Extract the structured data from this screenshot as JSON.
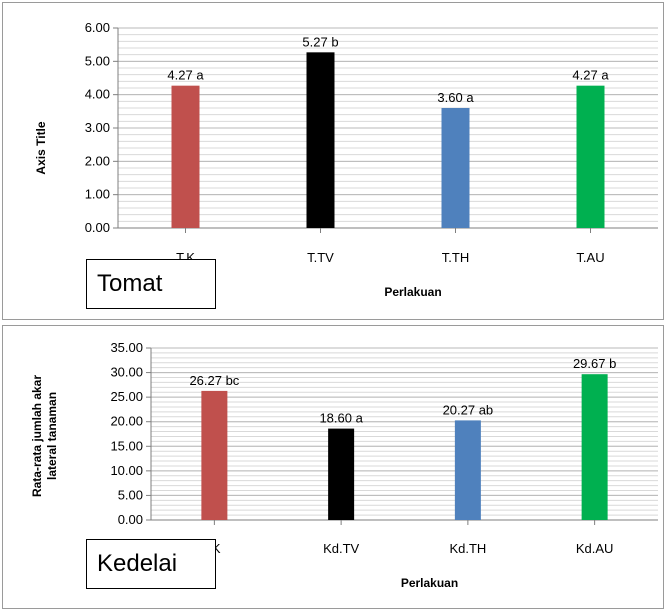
{
  "chart_data": [
    {
      "type": "bar",
      "categories": [
        "T.K",
        "T.TV",
        "T.TH",
        "T.AU"
      ],
      "values": [
        4.27,
        5.27,
        3.6,
        4.27
      ],
      "data_labels": [
        "4.27 a",
        "5.27 b",
        "3.60 a",
        "4.27 a"
      ],
      "colors": [
        "#c0504d",
        "#000000",
        "#4f81bd",
        "#00b050"
      ],
      "xlabel": "Perlakuan",
      "ylabel": "Axis Title",
      "ylim": [
        0,
        6
      ],
      "yticks": [
        "0.00",
        "1.00",
        "2.00",
        "3.00",
        "4.00",
        "5.00",
        "6.00"
      ],
      "grid": "horizontal",
      "overlay_label": "Tomat"
    },
    {
      "type": "bar",
      "categories": [
        ".K",
        "Kd.TV",
        "Kd.TH",
        "Kd.AU"
      ],
      "values": [
        26.27,
        18.6,
        20.27,
        29.67
      ],
      "data_labels": [
        "26.27 bc",
        "18.60 a",
        "20.27 ab",
        "29.67 b"
      ],
      "colors": [
        "#c0504d",
        "#000000",
        "#4f81bd",
        "#00b050"
      ],
      "xlabel": "Perlakuan",
      "ylabel_lines": [
        "Rata-rata jumlah akar",
        "lateral tanaman"
      ],
      "ylim": [
        0,
        35
      ],
      "yticks": [
        "0.00",
        "5.00",
        "10.00",
        "15.00",
        "20.00",
        "25.00",
        "30.00",
        "35.00"
      ],
      "grid": "horizontal",
      "overlay_label": "Kedelai"
    }
  ]
}
